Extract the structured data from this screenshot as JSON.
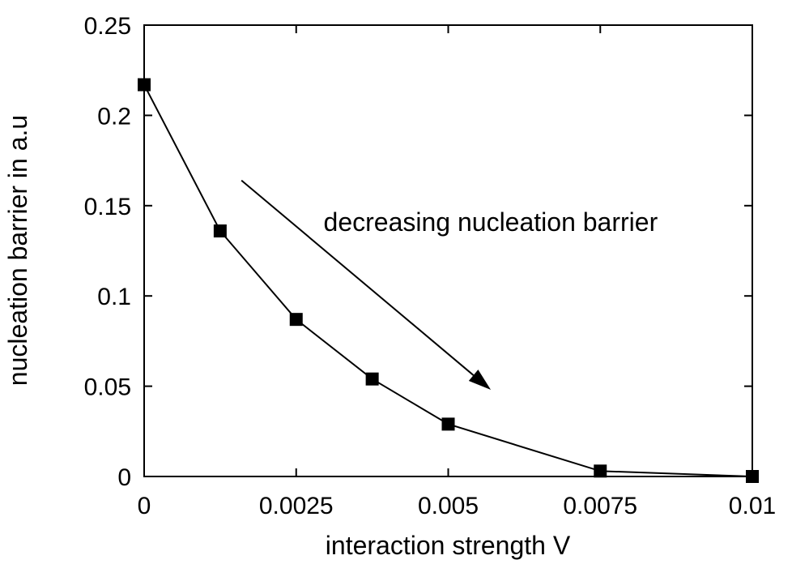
{
  "chart_data": {
    "type": "line",
    "title": "",
    "xlabel": "interaction strength V",
    "ylabel": "nucleation barrier in a.u",
    "xlim": [
      0,
      0.01
    ],
    "ylim": [
      0,
      0.25
    ],
    "x_ticks": [
      0,
      0.0025,
      0.005,
      0.0075,
      0.01
    ],
    "x_tick_labels": [
      "0",
      "0.0025",
      "0.005",
      "0.0075",
      "0.01"
    ],
    "y_ticks": [
      0,
      0.05,
      0.1,
      0.15,
      0.2,
      0.25
    ],
    "y_tick_labels": [
      "0",
      "0.05",
      "0.1",
      "0.15",
      "0.2",
      "0.25"
    ],
    "grid": false,
    "series": [
      {
        "name": "nucleation barrier",
        "marker": "square",
        "x": [
          0,
          0.00125,
          0.0025,
          0.00375,
          0.005,
          0.0075,
          0.01
        ],
        "y": [
          0.217,
          0.136,
          0.087,
          0.054,
          0.029,
          0.003,
          0.0
        ]
      }
    ],
    "annotations": [
      {
        "text": "decreasing nucleation barrier",
        "arrow_from": [
          0.0016,
          0.164
        ],
        "arrow_to": [
          0.0057,
          0.048
        ],
        "text_at": [
          0.00295,
          0.136
        ]
      }
    ]
  }
}
